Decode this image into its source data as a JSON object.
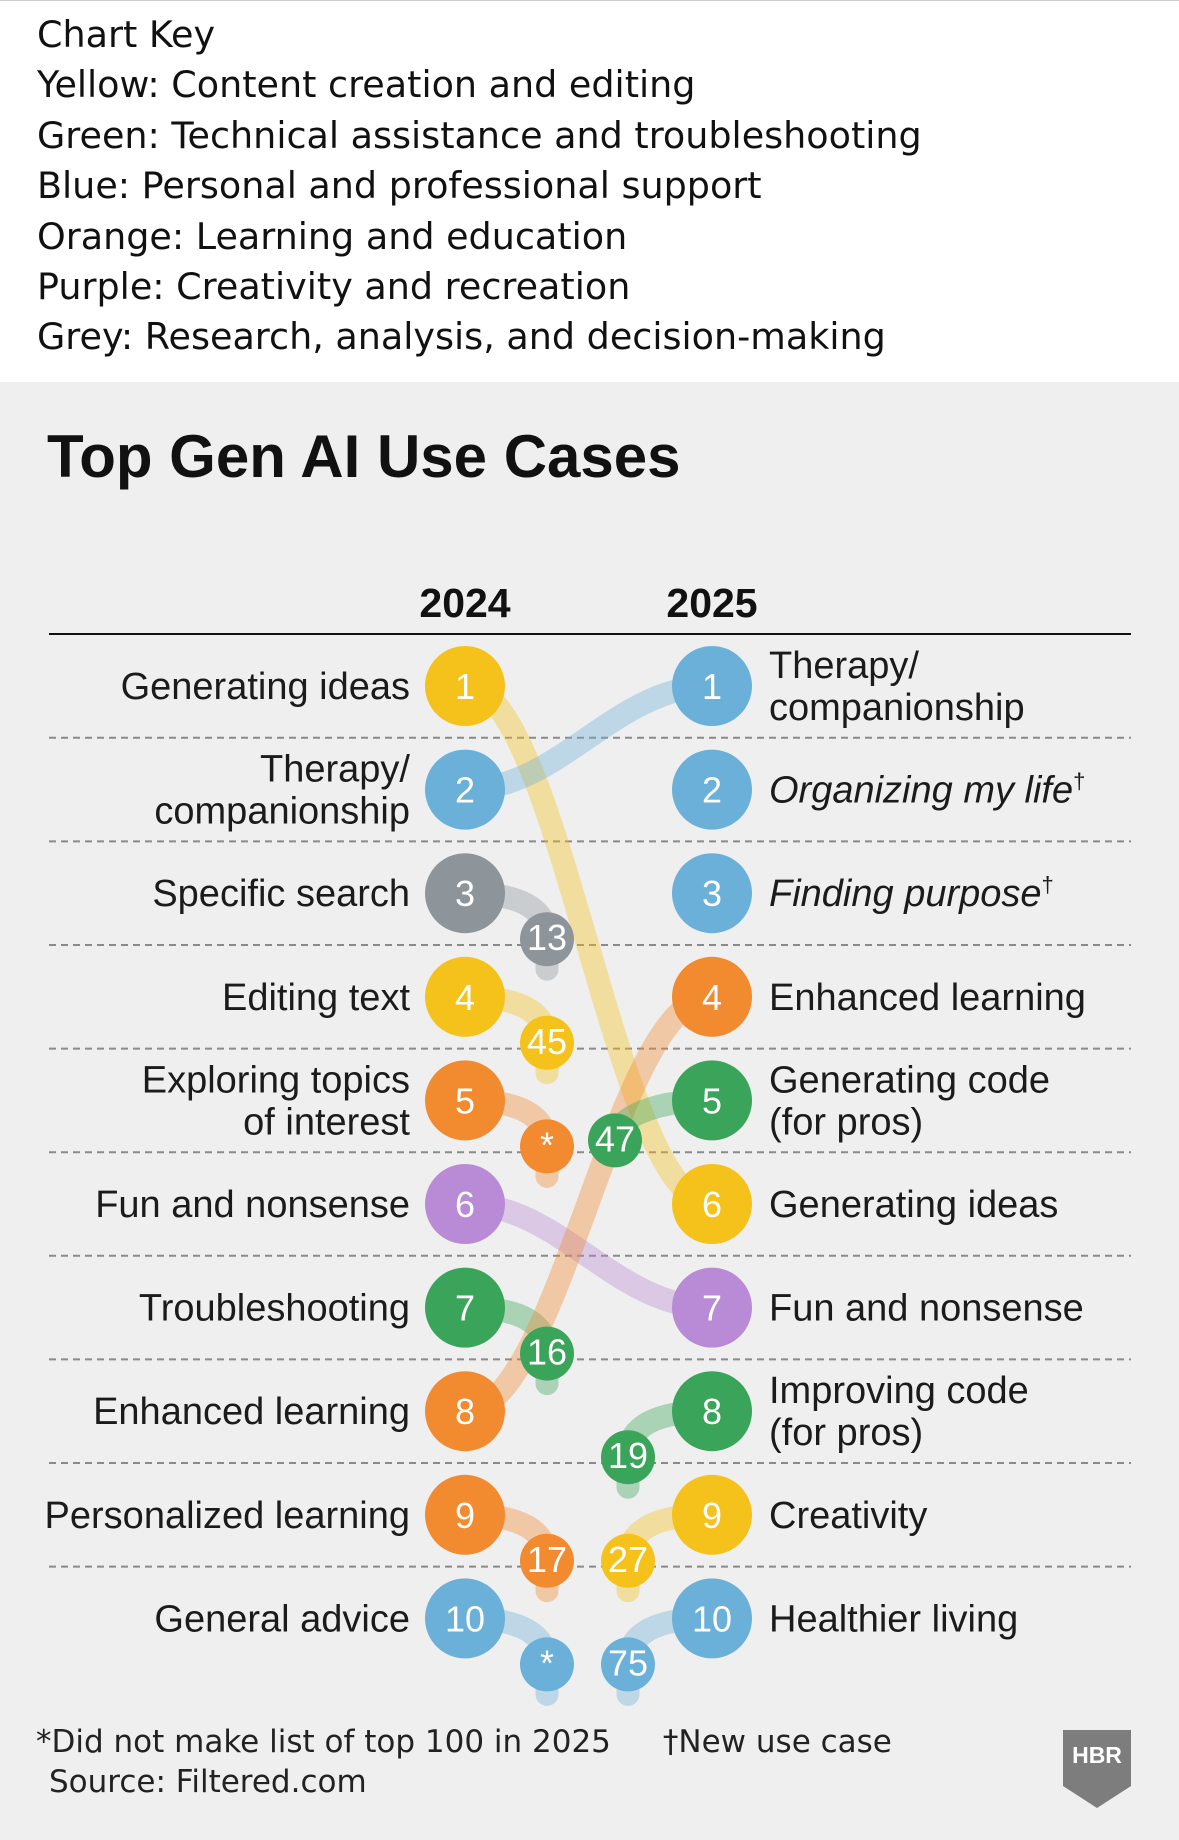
{
  "key": {
    "heading": "Chart Key",
    "lines": [
      "Yellow: Content creation and editing",
      "Green: Technical assistance and troubleshooting",
      "Blue: Personal and professional support",
      "Orange: Learning and education",
      "Purple: Creativity and recreation",
      "Grey: Research, analysis, and decision-making"
    ]
  },
  "colors": {
    "yellow": "#f5c21b",
    "green": "#3aa55a",
    "blue": "#6bb0d8",
    "orange": "#f28a30",
    "purple": "#b98ad6",
    "grey": "#8d959a"
  },
  "footnotes": {
    "not_top100": "*Did not make list of top 100 in 2025",
    "new_use_case": "†New use case",
    "source": "Source: Filtered.com"
  },
  "logo": {
    "text": "HBR"
  },
  "chart_data": {
    "type": "bump",
    "title": "Top Gen AI Use Cases",
    "columns": [
      "2024",
      "2025"
    ],
    "left": [
      {
        "rank": 1,
        "label": [
          "Generating ideas"
        ],
        "color": "yellow",
        "rank_2025": 6,
        "rank_2025_label": "6"
      },
      {
        "rank": 2,
        "label": [
          "Therapy/",
          "companionship"
        ],
        "color": "blue",
        "rank_2025": 1,
        "rank_2025_label": "1"
      },
      {
        "rank": 3,
        "label": [
          "Specific search"
        ],
        "color": "grey",
        "rank_2025": 13,
        "rank_2025_label": "13"
      },
      {
        "rank": 4,
        "label": [
          "Editing text"
        ],
        "color": "yellow",
        "rank_2025": 45,
        "rank_2025_label": "45"
      },
      {
        "rank": 5,
        "label": [
          "Exploring topics",
          "of interest"
        ],
        "color": "orange",
        "rank_2025": null,
        "rank_2025_label": "*"
      },
      {
        "rank": 6,
        "label": [
          "Fun and nonsense"
        ],
        "color": "purple",
        "rank_2025": 7,
        "rank_2025_label": "7"
      },
      {
        "rank": 7,
        "label": [
          "Troubleshooting"
        ],
        "color": "green",
        "rank_2025": 16,
        "rank_2025_label": "16"
      },
      {
        "rank": 8,
        "label": [
          "Enhanced learning"
        ],
        "color": "orange",
        "rank_2025": 4,
        "rank_2025_label": "4"
      },
      {
        "rank": 9,
        "label": [
          "Personalized learning"
        ],
        "color": "orange",
        "rank_2025": 17,
        "rank_2025_label": "17"
      },
      {
        "rank": 10,
        "label": [
          "General advice"
        ],
        "color": "blue",
        "rank_2025": null,
        "rank_2025_label": "*"
      }
    ],
    "right": [
      {
        "rank": 1,
        "label": [
          "Therapy/",
          "companionship"
        ],
        "color": "blue",
        "italic": false,
        "new": false,
        "rank_2024": 2,
        "rank_2024_label": "2"
      },
      {
        "rank": 2,
        "label": [
          "Organizing my life"
        ],
        "color": "blue",
        "italic": true,
        "new": true,
        "rank_2024": null,
        "rank_2024_label": ""
      },
      {
        "rank": 3,
        "label": [
          "Finding purpose"
        ],
        "color": "blue",
        "italic": true,
        "new": true,
        "rank_2024": null,
        "rank_2024_label": ""
      },
      {
        "rank": 4,
        "label": [
          "Enhanced learning"
        ],
        "color": "orange",
        "italic": false,
        "new": false,
        "rank_2024": 8,
        "rank_2024_label": "8"
      },
      {
        "rank": 5,
        "label": [
          "Generating code",
          "(for pros)"
        ],
        "color": "green",
        "italic": false,
        "new": false,
        "rank_2024": 47,
        "rank_2024_label": "47"
      },
      {
        "rank": 6,
        "label": [
          "Generating ideas"
        ],
        "color": "yellow",
        "italic": false,
        "new": false,
        "rank_2024": 1,
        "rank_2024_label": "1"
      },
      {
        "rank": 7,
        "label": [
          "Fun and nonsense"
        ],
        "color": "purple",
        "italic": false,
        "new": false,
        "rank_2024": 6,
        "rank_2024_label": "6"
      },
      {
        "rank": 8,
        "label": [
          "Improving code",
          "(for pros)"
        ],
        "color": "green",
        "italic": false,
        "new": false,
        "rank_2024": 19,
        "rank_2024_label": "19"
      },
      {
        "rank": 9,
        "label": [
          "Creativity"
        ],
        "color": "yellow",
        "italic": false,
        "new": false,
        "rank_2024": 27,
        "rank_2024_label": "27"
      },
      {
        "rank": 10,
        "label": [
          "Healthier living"
        ],
        "color": "blue",
        "italic": false,
        "new": false,
        "rank_2024": 75,
        "rank_2024_label": "75"
      }
    ],
    "dagger": "†"
  }
}
